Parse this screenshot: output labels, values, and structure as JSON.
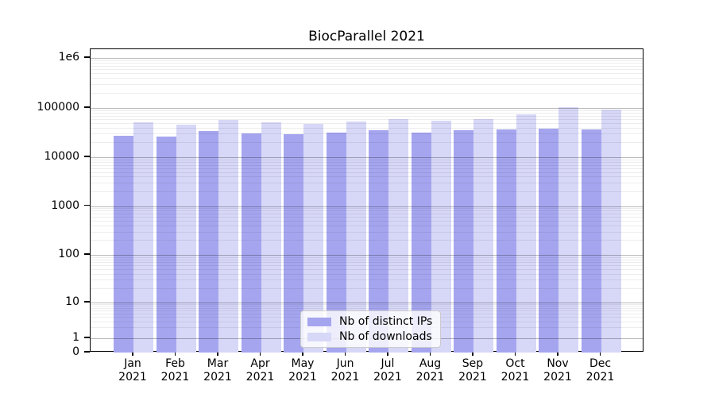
{
  "chart_data": {
    "type": "bar",
    "title": "BiocParallel 2021",
    "categories": [
      "Jan 2021",
      "Feb 2021",
      "Mar 2021",
      "Apr 2021",
      "May 2021",
      "Jun 2021",
      "Jul 2021",
      "Aug 2021",
      "Sep 2021",
      "Oct 2021",
      "Nov 2021",
      "Dec 2021"
    ],
    "series": [
      {
        "name": "Nb of distinct IPs",
        "color": "#a5a5ef",
        "values": [
          27000,
          26000,
          33500,
          30000,
          29500,
          31500,
          35000,
          31500,
          35000,
          36500,
          38000,
          36500
        ]
      },
      {
        "name": "Nb of downloads",
        "color": "#d7d7f7",
        "values": [
          50500,
          46000,
          57500,
          51000,
          47500,
          53000,
          59000,
          55000,
          59000,
          74000,
          102000,
          93000
        ]
      }
    ],
    "yscale": "symlog",
    "ylim": [
      0,
      1500000
    ],
    "y_ticks": [
      0,
      1,
      10,
      100,
      1000,
      10000,
      100000,
      1000000
    ],
    "y_tick_labels": [
      "0",
      "1",
      "10",
      "100",
      "1000",
      "10000",
      "100000",
      "1e6"
    ],
    "grid": "both",
    "legend_position": "lower center"
  },
  "colors": {
    "bar_ips": "#a5a5ef",
    "bar_downloads": "#d7d7f7",
    "grid_major": "#bababa",
    "grid_minor": "#ebebeb",
    "spine": "#000000",
    "text": "#000000",
    "legend_border": "#cccccc"
  }
}
